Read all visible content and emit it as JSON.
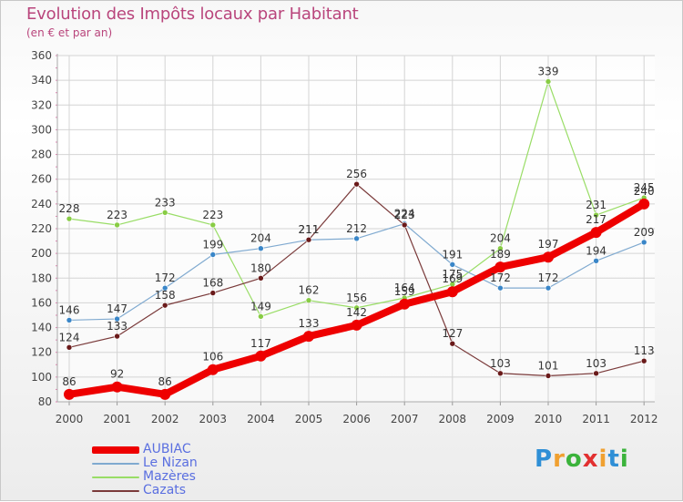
{
  "header": {
    "title": "Evolution des Impôts locaux par Habitant",
    "subtitle": "(en € et par an)"
  },
  "logo": {
    "text": "Proxiti",
    "letters": [
      "P",
      "r",
      "o",
      "x",
      "i",
      "t",
      "i"
    ],
    "colors": [
      "#2f8fd6",
      "#f0a030",
      "#3bb33b",
      "#e23030",
      "#f0a030",
      "#2f8fd6",
      "#3bb33b"
    ]
  },
  "chart_data": {
    "type": "line",
    "title": "Evolution des Impôts locaux par Habitant",
    "subtitle": "(en € et par an)",
    "xlabel": "",
    "ylabel": "",
    "x": [
      "2000",
      "2001",
      "2002",
      "2003",
      "2004",
      "2005",
      "2006",
      "2007",
      "2008",
      "2009",
      "2010",
      "2011",
      "2012"
    ],
    "ylim": [
      80,
      360
    ],
    "yticks": [
      80,
      100,
      120,
      140,
      160,
      180,
      200,
      220,
      240,
      260,
      280,
      300,
      320,
      340,
      360
    ],
    "grid": true,
    "legend_position": "bottom-left",
    "series": [
      {
        "name": "Mazères",
        "color": "#99dd66",
        "dot": "#88cc44",
        "line_width": 1.2,
        "dot_r": 3,
        "values": [
          228,
          223,
          233,
          223,
          149,
          162,
          156,
          164,
          175,
          204,
          339,
          231,
          245
        ],
        "labels": [
          "228",
          "223",
          "233",
          "223",
          "149",
          "162",
          "156",
          "164",
          "175",
          "204",
          "339",
          "231",
          "245"
        ]
      },
      {
        "name": "Le Nizan",
        "color": "#80aad0",
        "dot": "#3a86c8",
        "line_width": 1.2,
        "dot_r": 3,
        "values": [
          146,
          147,
          172,
          199,
          204,
          211,
          212,
          224,
          191,
          172,
          172,
          194,
          209
        ],
        "labels": [
          "146",
          "147",
          "172",
          "199",
          "204",
          "211",
          "212",
          "224",
          "191",
          "172",
          "172",
          "194",
          "209"
        ]
      },
      {
        "name": "Cazats",
        "color": "#7a3a3a",
        "dot": "#6a1a1a",
        "line_width": 1.2,
        "dot_r": 3,
        "values": [
          124,
          133,
          158,
          168,
          180,
          211,
          256,
          223,
          127,
          103,
          101,
          103,
          113
        ],
        "labels": [
          "124",
          "133",
          "158",
          "168",
          "180",
          "211",
          "256",
          "223",
          "127",
          "103",
          "101",
          "103",
          "113"
        ]
      },
      {
        "name": "AUBIAC",
        "color": "#ee0000",
        "dot": "#ee0000",
        "line_width": 8,
        "dot_r": 6,
        "values": [
          86,
          92,
          86,
          106,
          117,
          133,
          142,
          159,
          169,
          189,
          197,
          217,
          240
        ],
        "labels": [
          "86",
          "92",
          "86",
          "106",
          "117",
          "133",
          "142",
          "159",
          "169",
          "189",
          "197",
          "217",
          "240"
        ]
      }
    ],
    "legend": [
      "AUBIAC",
      "Le Nizan",
      "Mazères",
      "Cazats"
    ]
  }
}
